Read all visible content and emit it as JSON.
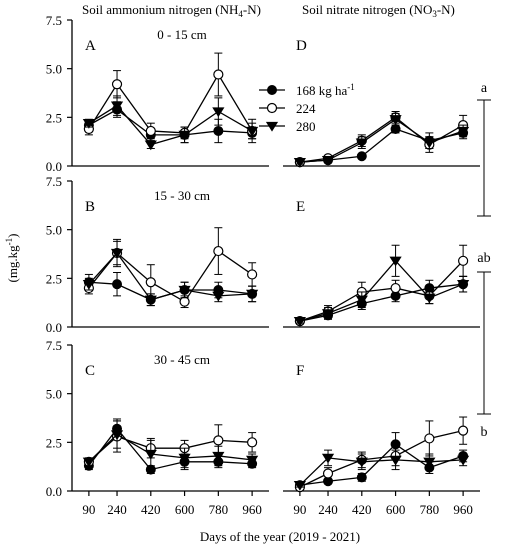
{
  "chart_data": {
    "type": "line",
    "x": [
      90,
      240,
      420,
      600,
      780,
      960
    ],
    "xlabel": "Days of the year (2019 - 2021)",
    "ylabel": "(mg.kg",
    "ylabel_sup": "-1",
    "ylabel_close": ")",
    "ylim": [
      0,
      7.5
    ],
    "yticks": [
      "0.0",
      "2.5",
      "5.0",
      "7.5"
    ],
    "column_titles": {
      "left": {
        "main": "Soil ammonium nitrogen (NH",
        "sub": "4",
        "tail": "-N)"
      },
      "right": {
        "main": "Soil nitrate nitrogen (NO",
        "sub": "3",
        "tail": "-N)"
      }
    },
    "legend": {
      "placement": "upper-middle",
      "entries": [
        {
          "label": "168 kg ha",
          "sup": "-1",
          "marker": "filled-circle"
        },
        {
          "label": "224",
          "sup": "",
          "marker": "open-circle"
        },
        {
          "label": "280",
          "sup": "",
          "marker": "filled-triangle-down"
        }
      ]
    },
    "significance": {
      "labels": [
        "a",
        "ab",
        "b"
      ],
      "ranges": [
        [
          3.4,
          7.5
        ],
        [
          2.9,
          3.4
        ],
        [
          0.0,
          2.9
        ]
      ]
    },
    "panels": [
      {
        "letter": "A",
        "depth": "0 - 15 cm",
        "row": 0,
        "col": 0,
        "series": [
          {
            "marker": "filled-circle",
            "y": [
              2.1,
              2.9,
              1.6,
              1.6,
              1.8,
              1.7
            ],
            "err": [
              0.2,
              0.4,
              0.3,
              0.4,
              0.6,
              0.3
            ]
          },
          {
            "marker": "open-circle",
            "y": [
              1.9,
              4.2,
              1.8,
              1.7,
              4.7,
              1.8
            ],
            "err": [
              0.3,
              0.7,
              0.4,
              0.3,
              1.1,
              0.6
            ]
          },
          {
            "marker": "filled-triangle-down",
            "y": [
              2.2,
              3.1,
              1.1,
              1.6,
              2.8,
              1.8
            ],
            "err": [
              0.2,
              0.5,
              0.2,
              0.4,
              0.7,
              0.4
            ]
          }
        ]
      },
      {
        "letter": "D",
        "depth": "",
        "row": 0,
        "col": 1,
        "series": [
          {
            "marker": "filled-circle",
            "y": [
              0.2,
              0.3,
              0.5,
              1.9,
              1.3,
              1.7
            ],
            "err": [
              0.1,
              0.1,
              0.1,
              0.2,
              0.4,
              0.3
            ]
          },
          {
            "marker": "open-circle",
            "y": [
              0.2,
              0.4,
              1.3,
              2.5,
              1.1,
              2.1
            ],
            "err": [
              0.1,
              0.1,
              0.3,
              0.3,
              0.4,
              0.5
            ]
          },
          {
            "marker": "filled-triangle-down",
            "y": [
              0.2,
              0.3,
              1.2,
              2.4,
              1.2,
              1.8
            ],
            "err": [
              0.1,
              0.1,
              0.3,
              0.3,
              0.3,
              0.3
            ]
          }
        ]
      },
      {
        "letter": "B",
        "depth": "15 - 30 cm",
        "row": 1,
        "col": 0,
        "series": [
          {
            "marker": "filled-circle",
            "y": [
              2.3,
              2.2,
              1.4,
              1.9,
              1.9,
              1.7
            ],
            "err": [
              0.4,
              0.6,
              0.3,
              0.4,
              0.4,
              0.4
            ]
          },
          {
            "marker": "open-circle",
            "y": [
              2.0,
              3.8,
              2.3,
              1.3,
              3.9,
              2.7
            ],
            "err": [
              0.3,
              0.7,
              0.9,
              0.3,
              1.2,
              0.6
            ]
          },
          {
            "marker": "filled-triangle-down",
            "y": [
              2.2,
              3.8,
              1.4,
              1.9,
              1.6,
              1.7
            ],
            "err": [
              0.3,
              0.6,
              0.3,
              0.4,
              0.3,
              0.4
            ]
          }
        ]
      },
      {
        "letter": "E",
        "depth": "",
        "row": 1,
        "col": 1,
        "series": [
          {
            "marker": "filled-circle",
            "y": [
              0.3,
              0.6,
              1.2,
              1.6,
              2.0,
              2.2
            ],
            "err": [
              0.1,
              0.2,
              0.3,
              0.3,
              0.4,
              0.4
            ]
          },
          {
            "marker": "open-circle",
            "y": [
              0.3,
              0.8,
              1.8,
              2.0,
              1.6,
              3.4
            ],
            "err": [
              0.1,
              0.3,
              0.5,
              0.4,
              0.4,
              0.8
            ]
          },
          {
            "marker": "filled-triangle-down",
            "y": [
              0.3,
              0.7,
              1.4,
              3.4,
              1.5,
              2.2
            ],
            "err": [
              0.1,
              0.3,
              0.4,
              0.8,
              0.3,
              0.4
            ]
          }
        ]
      },
      {
        "letter": "C",
        "depth": "30 - 45 cm",
        "row": 2,
        "col": 0,
        "series": [
          {
            "marker": "filled-circle",
            "y": [
              1.3,
              3.2,
              1.1,
              1.5,
              1.5,
              1.4
            ],
            "err": [
              0.2,
              0.5,
              0.2,
              0.4,
              0.3,
              0.2
            ]
          },
          {
            "marker": "open-circle",
            "y": [
              1.5,
              2.8,
              2.2,
              2.2,
              2.6,
              2.5
            ],
            "err": [
              0.2,
              0.8,
              0.5,
              0.4,
              0.8,
              0.5
            ]
          },
          {
            "marker": "filled-triangle-down",
            "y": [
              1.5,
              2.9,
              1.9,
              1.7,
              1.8,
              1.6
            ],
            "err": [
              0.2,
              0.7,
              0.7,
              0.5,
              0.5,
              0.3
            ]
          }
        ]
      },
      {
        "letter": "F",
        "depth": "",
        "row": 2,
        "col": 1,
        "series": [
          {
            "marker": "filled-circle",
            "y": [
              0.3,
              0.5,
              0.7,
              2.4,
              1.2,
              1.8
            ],
            "err": [
              0.1,
              0.1,
              0.2,
              0.6,
              0.3,
              0.3
            ]
          },
          {
            "marker": "open-circle",
            "y": [
              0.2,
              0.9,
              1.6,
              1.8,
              2.7,
              3.1
            ],
            "err": [
              0.1,
              0.3,
              0.4,
              0.5,
              0.9,
              0.7
            ]
          },
          {
            "marker": "filled-triangle-down",
            "y": [
              0.3,
              1.7,
              1.5,
              1.6,
              1.5,
              1.6
            ],
            "err": [
              0.1,
              0.4,
              0.4,
              0.5,
              0.4,
              0.3
            ]
          }
        ]
      }
    ]
  }
}
